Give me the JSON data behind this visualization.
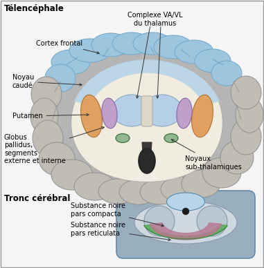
{
  "labels": {
    "telencephale": "Télencéphale",
    "tronc": "Tronc cérébral",
    "cortex_frontal": "Cortex frontal",
    "noyau_caude": "Noyau\ncaudé",
    "putamen": "Putamen",
    "globus": "Globus\npallidus,\nsegments\nexterne et interne",
    "complexe_va": "Complexe VA/VL\ndu thalamus",
    "noyaux_sub": "Noyaux\nsub-thalamiques",
    "substance_compacta": "Substance noire\npars compacta",
    "substance_reticulata": "Substance noire\npars reticulata"
  },
  "colors": {
    "bg": "#f5f5f5",
    "brain_outer": "#b0b0b0",
    "brain_mid": "#c8c5bc",
    "brain_inner_bg": "#e8e4d8",
    "white_matter": "#f0ece0",
    "cortex_blue_light": "#b8d4e8",
    "cortex_blue": "#9dc5de",
    "cortex_blue_dark": "#6fa8cc",
    "thalamus_blue": "#b5cfe8",
    "putamen_orange": "#dfa060",
    "globus_purple": "#c0a0c8",
    "globus_green": "#8aba8a",
    "subthalamic_green": "#90b890",
    "brainstem_dark": "#404040",
    "bs_bg": "#a8bbc8",
    "bs_inner": "#c8d5de",
    "bs_round": "#b8c8d4",
    "sn_green": "#5aaa5a",
    "sn_pink": "#b87890",
    "gyrus_border": "#808080",
    "sulcus_dark": "#909090",
    "line_color": "#333333"
  },
  "figsize": [
    3.81,
    3.88
  ],
  "dpi": 100
}
